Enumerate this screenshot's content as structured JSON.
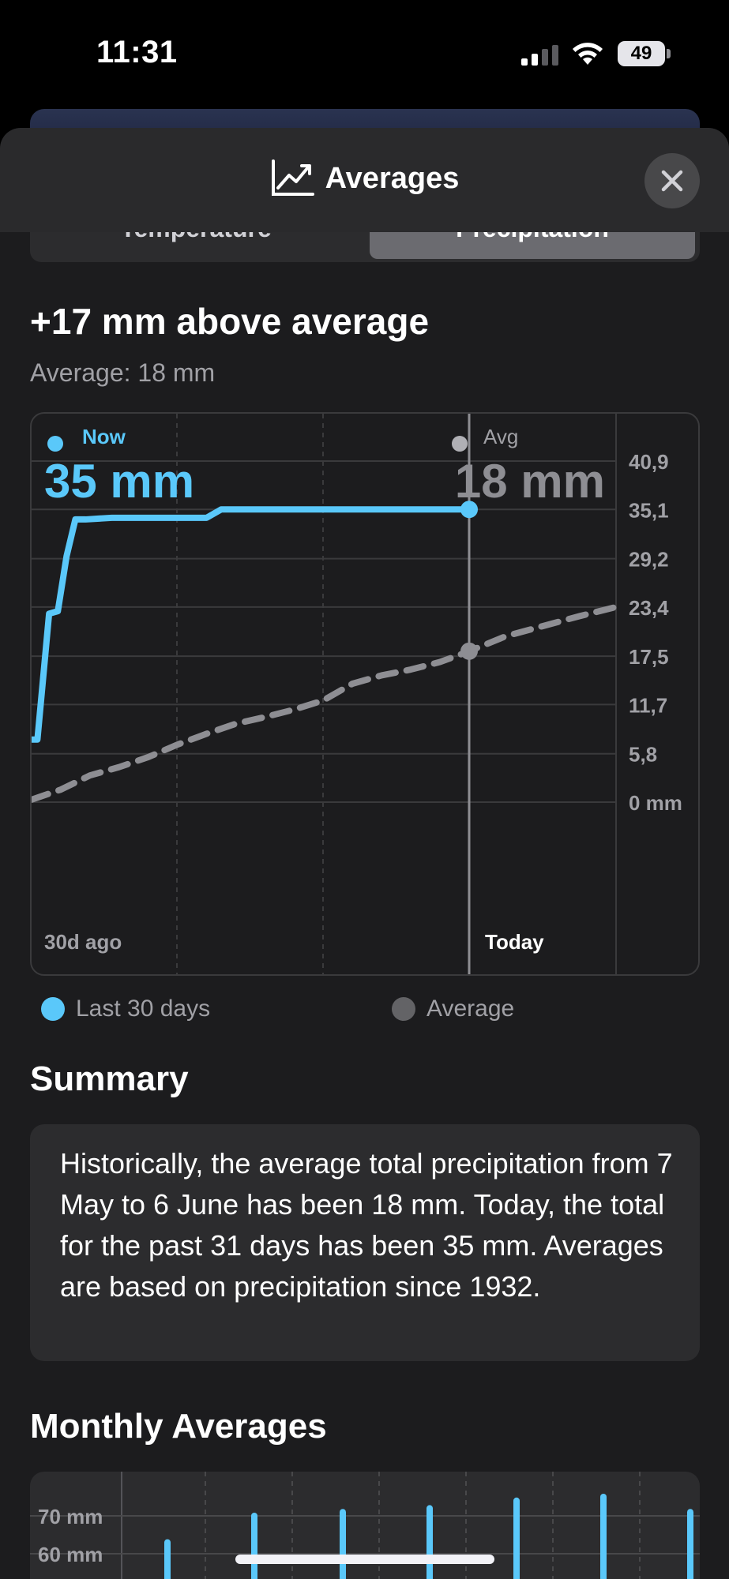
{
  "status_bar": {
    "time": "11:31",
    "battery": "49"
  },
  "header": {
    "title": "Averages",
    "icon": "chart-line-icon",
    "close_icon": "close-icon"
  },
  "tabs": [
    {
      "label": "Temperature",
      "selected": false
    },
    {
      "label": "Precipitation",
      "selected": true
    }
  ],
  "headline": "+17 mm above average",
  "subline": "Average: 18 mm",
  "colors": {
    "now": "#5ac8fa",
    "avg": "#8e8e93",
    "card_bg": "#2c2c2e",
    "sheet_bg": "#1c1c1e"
  },
  "chart_data": {
    "type": "line",
    "now_label": "Now",
    "now_value": "35 mm",
    "avg_label": "Avg",
    "avg_value": "18 mm",
    "y_ticks": [
      "40,9",
      "35,1",
      "29,2",
      "23,4",
      "17,5",
      "11,7",
      "5,8",
      "0 mm"
    ],
    "y_tick_values": [
      40.9,
      35.1,
      29.2,
      23.4,
      17.5,
      11.7,
      5.8,
      0
    ],
    "ylim": [
      0,
      40.9
    ],
    "xlim": [
      -30,
      4
    ],
    "x_labels": {
      "start": "30d ago",
      "today": "Today"
    },
    "series": [
      {
        "name": "Last 30 days",
        "x": [
          -30,
          -29.6,
          -28.8,
          -28.2,
          -27.6,
          -27,
          -26.3,
          -24.5,
          -23,
          -20,
          -18,
          -17,
          -15,
          -10,
          -5,
          0
        ],
        "y": [
          7.5,
          7.5,
          22.6,
          22.9,
          29.5,
          33.9,
          33.9,
          34.1,
          34.1,
          34.1,
          34.1,
          35.1,
          35.1,
          35.1,
          35.1,
          35.1
        ]
      },
      {
        "name": "Average",
        "x": [
          -30,
          -28,
          -26,
          -24,
          -22,
          -20,
          -18,
          -16,
          -14,
          -12,
          -10,
          -8,
          -6,
          -4,
          -2,
          0,
          1,
          2,
          3,
          4
        ],
        "y": [
          0.3,
          1.5,
          3.2,
          4.2,
          5.4,
          6.9,
          8.2,
          9.4,
          10.2,
          11.1,
          12.2,
          14.2,
          15.2,
          15.9,
          16.8,
          18.1,
          19.9,
          21.1,
          22.3,
          23.4
        ]
      }
    ]
  },
  "legend": [
    {
      "label": "Last 30 days",
      "color": "#5ac8fa"
    },
    {
      "label": "Average",
      "color": "#636366"
    }
  ],
  "summary": {
    "title": "Summary",
    "text": "Historically, the average total precipitation from 7 May to 6 June has been 18 mm. Today, the total for the past 31 days has been 35 mm. Averages are based on precipitation since 1932."
  },
  "monthly": {
    "title": "Monthly Averages",
    "y_ticks": [
      "70 mm",
      "60 mm"
    ],
    "bar_values": [
      63,
      70,
      71,
      72,
      74,
      75,
      71
    ]
  }
}
